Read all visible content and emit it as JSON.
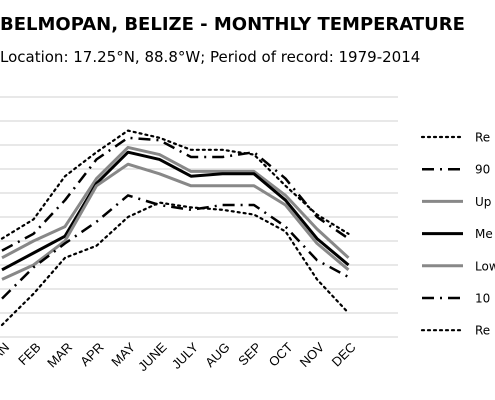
{
  "chart_data": {
    "type": "line",
    "title": "BELMOPAN, BELIZE - MONTHLY TEMPERATURE",
    "subtitle": "Location: 17.25°N, 88.8°W; Period of record: 1979-2014",
    "categories": [
      "JAN",
      "FEB",
      "MAR",
      "APR",
      "MAY",
      "JUNE",
      "JULY",
      "AUG",
      "SEP",
      "OCT",
      "NOV",
      "DEC"
    ],
    "ylim": [
      0,
      10
    ],
    "grid": true,
    "legend_position": "right",
    "series": [
      {
        "name": "Re",
        "style": "dotted",
        "color": "#000000",
        "values": [
          4.1,
          4.9,
          6.7,
          7.7,
          8.6,
          8.3,
          7.8,
          7.8,
          7.6,
          6.3,
          5.1,
          4.3
        ]
      },
      {
        "name": "90",
        "style": "dashdot",
        "color": "#000000",
        "values": [
          3.6,
          4.3,
          5.7,
          7.4,
          8.3,
          8.2,
          7.5,
          7.5,
          7.7,
          6.6,
          5.0,
          4.1
        ]
      },
      {
        "name": "Up",
        "style": "solid",
        "color": "#888888",
        "values": [
          3.3,
          4.0,
          4.6,
          6.6,
          7.9,
          7.6,
          6.9,
          6.9,
          6.9,
          5.9,
          4.5,
          3.3
        ]
      },
      {
        "name": "Me",
        "style": "solid",
        "color": "#000000",
        "values": [
          2.8,
          3.5,
          4.2,
          6.4,
          7.7,
          7.4,
          6.7,
          6.8,
          6.8,
          5.7,
          4.1,
          3.0
        ]
      },
      {
        "name": "Low",
        "style": "solid",
        "color": "#888888",
        "values": [
          2.4,
          3.0,
          4.0,
          6.3,
          7.2,
          6.8,
          6.3,
          6.3,
          6.3,
          5.5,
          3.9,
          2.8
        ]
      },
      {
        "name": "10",
        "style": "dashdot",
        "color": "#000000",
        "values": [
          1.6,
          2.9,
          3.9,
          4.8,
          5.9,
          5.5,
          5.3,
          5.5,
          5.5,
          4.6,
          3.2,
          2.5
        ]
      },
      {
        "name": "Re",
        "style": "dotted",
        "color": "#000000",
        "values": [
          0.5,
          1.8,
          3.3,
          3.8,
          5.0,
          5.6,
          5.4,
          5.3,
          5.1,
          4.4,
          2.4,
          1.0
        ]
      }
    ]
  }
}
